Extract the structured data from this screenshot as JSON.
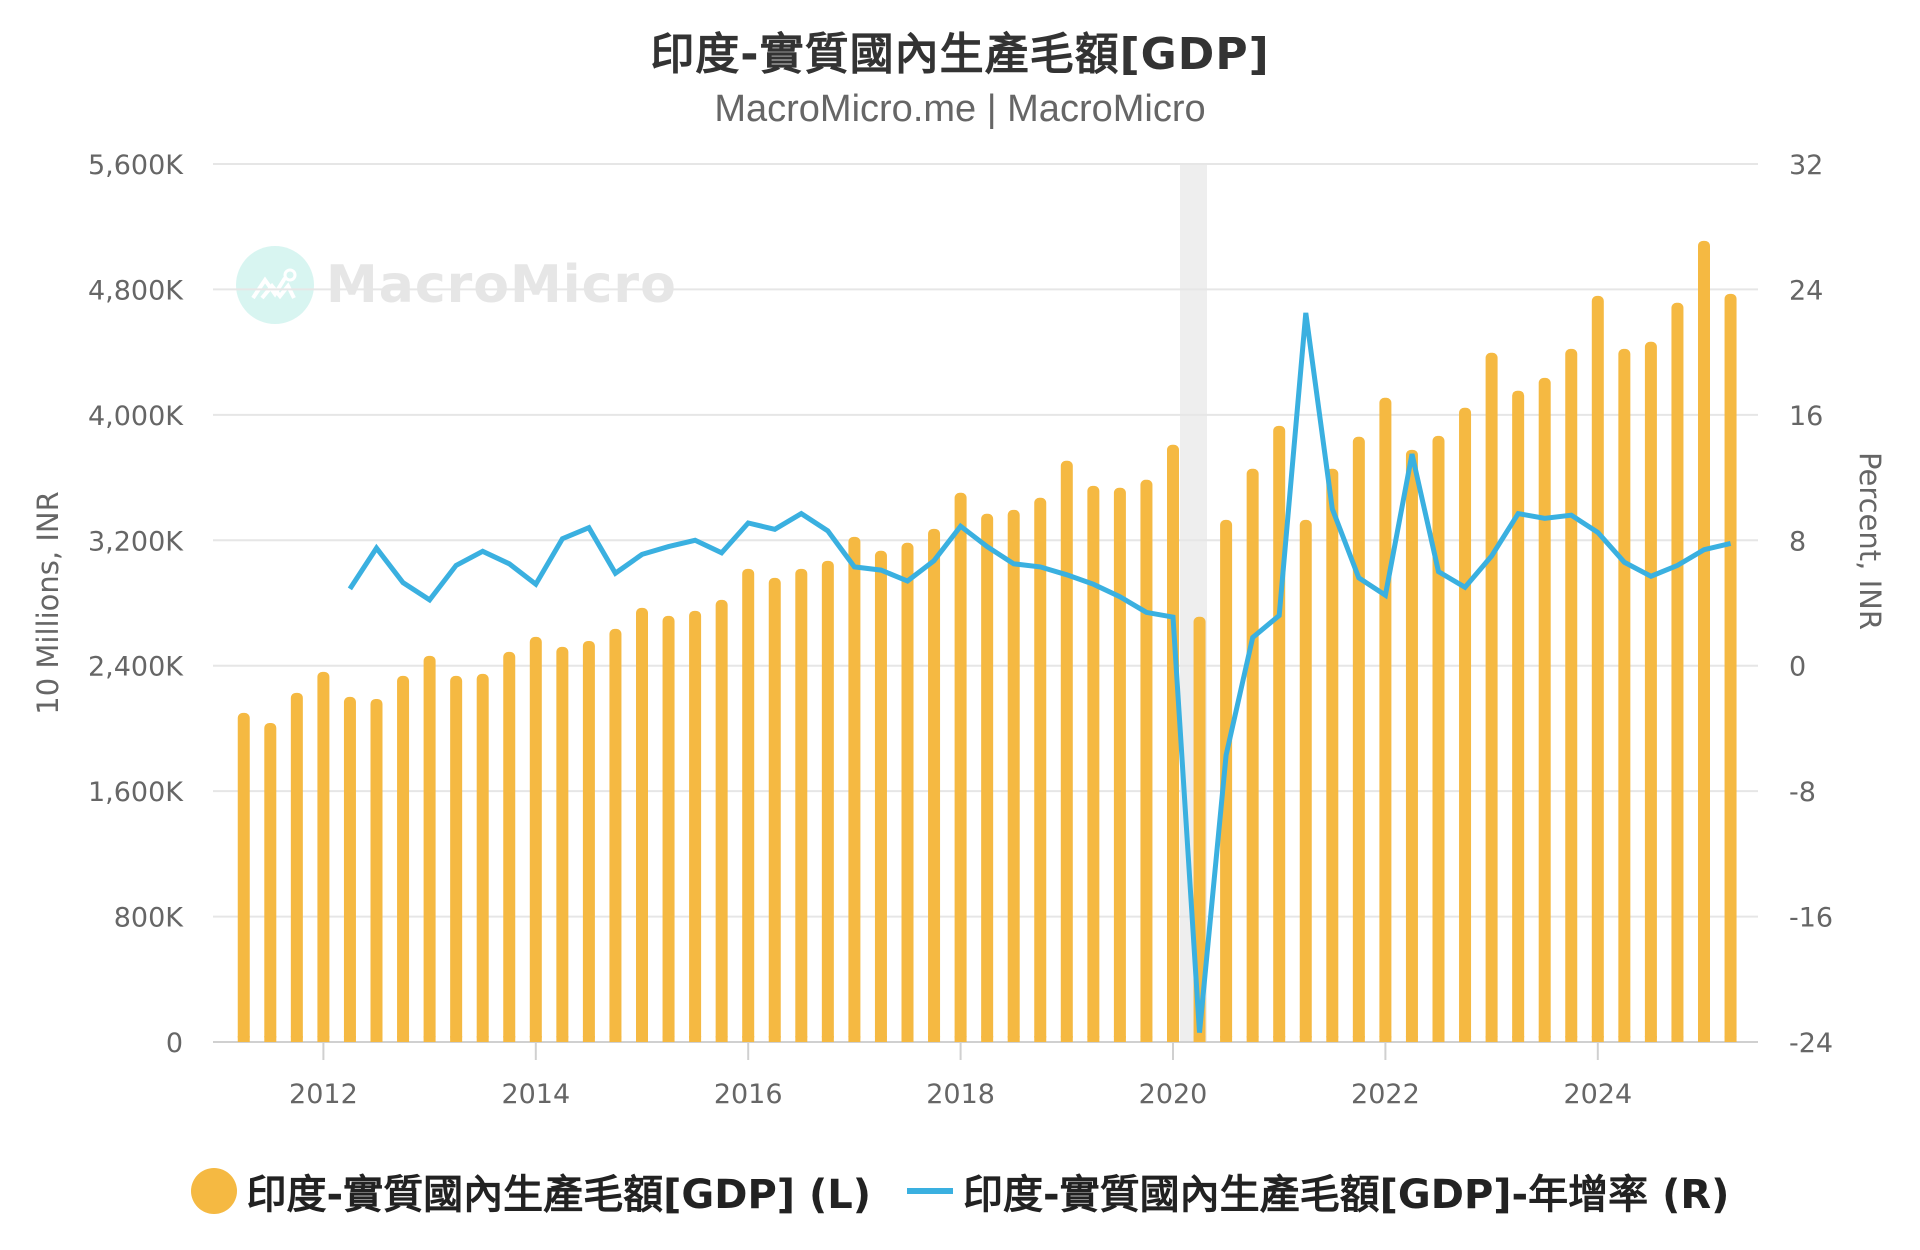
{
  "header": {
    "title": "印度-實質國內生產毛額[GDP]",
    "subtitle": "MacroMicro.me | MacroMicro"
  },
  "watermark": {
    "text": "MacroMicro",
    "icon": "chart-line-icon"
  },
  "legend": {
    "items": [
      {
        "label": "印度-實質國內生產毛額[GDP] (L)",
        "marker": "circle",
        "color": "#f5b942"
      },
      {
        "label": "印度-實質國內生產毛額[GDP]-年增率 (R)",
        "marker": "line",
        "color": "#3ab0e0"
      }
    ]
  },
  "colors": {
    "bar": "#f5b942",
    "line": "#3ab0e0",
    "grid": "#e6e6e6",
    "recession_band": "#eeeeee",
    "axis_text": "#666666"
  },
  "chart_data": {
    "type": "bar+line",
    "title": "印度-實質國內生產毛額[GDP]",
    "subtitle": "MacroMicro.me | MacroMicro",
    "xlabel": "",
    "ylabel_left": "10 Millions, INR",
    "ylabel_right": "Percent, INR",
    "ylim_left": [
      0,
      5600
    ],
    "ylim_right": [
      -24,
      32
    ],
    "yticks_left": [
      "0",
      "800K",
      "1,600K",
      "2,400K",
      "3,200K",
      "4,000K",
      "4,800K",
      "5,600K"
    ],
    "yticks_left_values": [
      0,
      800,
      1600,
      2400,
      3200,
      4000,
      4800,
      5600
    ],
    "yticks_right": [
      "-24",
      "-16",
      "-8",
      "0",
      "8",
      "16",
      "24",
      "32"
    ],
    "yticks_right_values": [
      -24,
      -16,
      -8,
      0,
      8,
      16,
      24,
      32
    ],
    "xticks": [
      "2012",
      "2014",
      "2016",
      "2018",
      "2020",
      "2022",
      "2024"
    ],
    "xticks_values": [
      2012,
      2014,
      2016,
      2018,
      2020,
      2022,
      2024
    ],
    "xlim": [
      2010.85,
      2025.4
    ],
    "grid": true,
    "legend_position": "bottom",
    "shaded_band": {
      "from": 2020.08,
      "to": 2020.33
    },
    "x": [
      2011.25,
      2011.5,
      2011.75,
      2012.0,
      2012.25,
      2012.5,
      2012.75,
      2013.0,
      2013.25,
      2013.5,
      2013.75,
      2014.0,
      2014.25,
      2014.5,
      2014.75,
      2015.0,
      2015.25,
      2015.5,
      2015.75,
      2016.0,
      2016.25,
      2016.5,
      2016.75,
      2017.0,
      2017.25,
      2017.5,
      2017.75,
      2018.0,
      2018.25,
      2018.5,
      2018.75,
      2019.0,
      2019.25,
      2019.5,
      2019.75,
      2020.0,
      2020.25,
      2020.5,
      2020.75,
      2021.0,
      2021.25,
      2021.5,
      2021.75,
      2022.0,
      2022.25,
      2022.5,
      2022.75,
      2023.0,
      2023.25,
      2023.5,
      2023.75,
      2024.0,
      2024.25,
      2024.5,
      2024.75,
      2025.0,
      2025.25
    ],
    "series": [
      {
        "name": "印度-實質國內生產毛額[GDP] (L)",
        "type": "bar",
        "axis": "left",
        "unit": "K (10 Millions, INR)",
        "values": [
          2099,
          2035,
          2227,
          2361,
          2201,
          2188,
          2335,
          2463,
          2335,
          2348,
          2488,
          2584,
          2520,
          2558,
          2635,
          2769,
          2718,
          2750,
          2820,
          3018,
          2960,
          3018,
          3069,
          3222,
          3133,
          3184,
          3273,
          3503,
          3369,
          3394,
          3471,
          3707,
          3547,
          3535,
          3586,
          3809,
          2712,
          3330,
          3656,
          3930,
          3330,
          3656,
          3860,
          4109,
          3777,
          3866,
          4045,
          4396,
          4154,
          4236,
          4421,
          4759,
          4421,
          4466,
          4715,
          5110,
          4772
        ]
      },
      {
        "name": "印度-實質國內生產毛額[GDP]-年增率 (R)",
        "type": "line",
        "axis": "right",
        "unit": "%",
        "values": [
          null,
          null,
          null,
          null,
          4.9,
          7.5,
          5.3,
          4.2,
          6.4,
          7.3,
          6.5,
          5.2,
          8.1,
          8.8,
          5.9,
          7.1,
          7.6,
          8.0,
          7.2,
          9.1,
          8.7,
          9.7,
          8.6,
          6.3,
          6.1,
          5.4,
          6.7,
          8.9,
          7.6,
          6.5,
          6.3,
          5.8,
          5.2,
          4.4,
          3.4,
          3.1,
          -23.4,
          -5.7,
          1.8,
          3.2,
          22.5,
          10.0,
          5.6,
          4.5,
          13.5,
          6.0,
          5.0,
          7.0,
          9.7,
          9.4,
          9.6,
          8.5,
          6.6,
          5.7,
          6.4,
          7.4,
          7.8
        ]
      }
    ]
  }
}
